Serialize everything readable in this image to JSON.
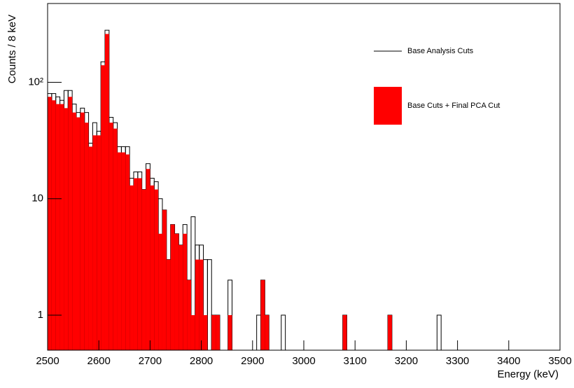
{
  "chart_data": {
    "type": "histogram",
    "xlabel": "Energy (keV)",
    "ylabel": "Counts / 8 keV",
    "bins": [
      2500,
      2508,
      2516,
      2524,
      2532,
      2540,
      2548,
      2556,
      2564,
      2572,
      2580,
      2588,
      2596,
      2604,
      2612,
      2620,
      2628,
      2636,
      2644,
      2652,
      2660,
      2668,
      2676,
      2684,
      2692,
      2700,
      2708,
      2716,
      2724,
      2732,
      2740,
      2748,
      2756,
      2764,
      2772,
      2780,
      2788,
      2796,
      2804,
      2812,
      2820,
      2828,
      2836,
      2844,
      2852,
      2860,
      2868,
      2876,
      2884,
      2892,
      2900,
      2908,
      2916,
      2924,
      2932,
      2940,
      2948,
      2956,
      2964,
      2972,
      2980,
      2988,
      2996,
      3004,
      3012,
      3020,
      3028,
      3036,
      3044,
      3052,
      3060,
      3068,
      3076,
      3084,
      3092,
      3100,
      3108,
      3116,
      3124,
      3132,
      3140,
      3148,
      3156,
      3164,
      3172,
      3180,
      3188,
      3196,
      3204,
      3212,
      3220,
      3228,
      3236,
      3244,
      3252,
      3260,
      3268,
      3276,
      3284,
      3292,
      3300,
      3308,
      3316,
      3324,
      3332,
      3340,
      3348,
      3356,
      3364,
      3372,
      3380,
      3388,
      3396,
      3404,
      3412,
      3420,
      3428,
      3436,
      3444,
      3452,
      3460,
      3468,
      3476,
      3484,
      3492,
      3500
    ],
    "series": [
      {
        "name": "Base Analysis Cuts",
        "color": "#000000",
        "style": "outline",
        "values": [
          80,
          80,
          75,
          70,
          85,
          85,
          65,
          55,
          60,
          55,
          30,
          45,
          38,
          150,
          280,
          50,
          45,
          28,
          28,
          28,
          15,
          17,
          17,
          12,
          20,
          15,
          14,
          10,
          8,
          3,
          6,
          5,
          4,
          6,
          2,
          7,
          4,
          4,
          3,
          3,
          1,
          1,
          0,
          0,
          2,
          0,
          0,
          0,
          0,
          0,
          0,
          1,
          2,
          1,
          0,
          0,
          0,
          1,
          0,
          0,
          0,
          0,
          0,
          0,
          0,
          0,
          0,
          0,
          0,
          0,
          0,
          0,
          1,
          0,
          0,
          0,
          0,
          0,
          0,
          0,
          0,
          0,
          0,
          1,
          0,
          0,
          0,
          0,
          0,
          0,
          0,
          0,
          0,
          0,
          0,
          1,
          0,
          0,
          0,
          0,
          0,
          0,
          0,
          0,
          0,
          0,
          0,
          0,
          0,
          0,
          0,
          0,
          0,
          0,
          0,
          0,
          0,
          0,
          0,
          0,
          0,
          0,
          0,
          0,
          0
        ]
      },
      {
        "name": "Base Cuts + Final PCA Cut",
        "color": "#ff0000",
        "style": "filled",
        "values": [
          75,
          70,
          65,
          65,
          60,
          75,
          55,
          50,
          55,
          45,
          28,
          35,
          35,
          140,
          260,
          45,
          40,
          25,
          25,
          24,
          13,
          15,
          15,
          12,
          18,
          13,
          12,
          5,
          8,
          3,
          6,
          5,
          4,
          5,
          2,
          1,
          3,
          3,
          1,
          0,
          1,
          1,
          0,
          0,
          1,
          0,
          0,
          0,
          0,
          0,
          0,
          0,
          2,
          1,
          0,
          0,
          0,
          0,
          0,
          0,
          0,
          0,
          0,
          0,
          0,
          0,
          0,
          0,
          0,
          0,
          0,
          0,
          1,
          0,
          0,
          0,
          0,
          0,
          0,
          0,
          0,
          0,
          0,
          1,
          0,
          0,
          0,
          0,
          0,
          0,
          0,
          0,
          0,
          0,
          0,
          0,
          0,
          0,
          0,
          0,
          0,
          0,
          0,
          0,
          0,
          0,
          0,
          0,
          0,
          0,
          0,
          0,
          0,
          0,
          0,
          0,
          0,
          0,
          0,
          0,
          0,
          0,
          0,
          0,
          0
        ]
      }
    ],
    "xlim": [
      2500,
      3500
    ],
    "xticks": [
      2500,
      2600,
      2700,
      2800,
      2900,
      3000,
      3100,
      3200,
      3300,
      3400,
      3500
    ],
    "ylim": [
      0.5,
      475
    ],
    "yticks": [
      1,
      10,
      {
        "value": 100,
        "label": "10²"
      }
    ],
    "log_y": true,
    "grid": false
  }
}
